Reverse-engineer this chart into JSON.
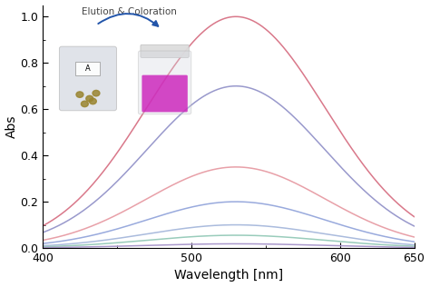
{
  "xlabel": "Wavelength [nm]",
  "ylabel": "Abs",
  "xlim": [
    400,
    650
  ],
  "ylim": [
    0,
    1.05
  ],
  "xticks": [
    400,
    500,
    600,
    650
  ],
  "yticks": [
    0,
    0.2,
    0.4,
    0.6,
    0.8,
    1
  ],
  "peak_wavelength": 530,
  "sigma": 60,
  "curves": [
    {
      "peak_abs": 1.0,
      "color": "#d9788a",
      "lw": 1.1
    },
    {
      "peak_abs": 0.7,
      "color": "#9999cc",
      "lw": 1.1
    },
    {
      "peak_abs": 0.35,
      "color": "#e8a0a8",
      "lw": 1.1
    },
    {
      "peak_abs": 0.2,
      "color": "#99aadd",
      "lw": 1.1
    },
    {
      "peak_abs": 0.1,
      "color": "#aabbdd",
      "lw": 1.1
    },
    {
      "peak_abs": 0.055,
      "color": "#99ccbb",
      "lw": 1.1
    },
    {
      "peak_abs": 0.018,
      "color": "#aa99cc",
      "lw": 1.1
    }
  ],
  "annotation_text": "Elution & Coloration",
  "background_color": "#ffffff",
  "xlabel_fontsize": 10,
  "ylabel_fontsize": 10,
  "tick_fontsize": 9
}
